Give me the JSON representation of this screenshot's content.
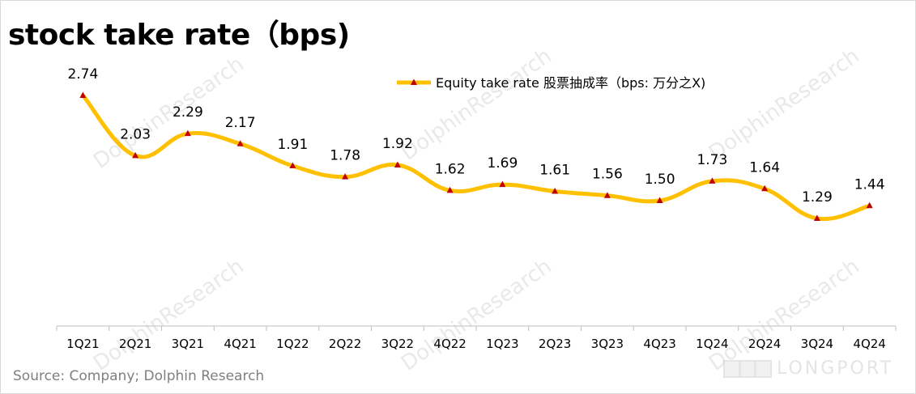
{
  "title": "stock take rate（bps)",
  "source": "Source: Company; Dolphin Research",
  "watermark": "DolphinResearch",
  "brand": "LONGPORT",
  "colors": {
    "line": "#FFC000",
    "marker": "#C00000",
    "axis": "#bfbfbf",
    "text": "#000000"
  },
  "chart_data": {
    "type": "line",
    "categories": [
      "1Q21",
      "2Q21",
      "3Q21",
      "4Q21",
      "1Q22",
      "2Q22",
      "3Q22",
      "4Q22",
      "1Q23",
      "2Q23",
      "3Q23",
      "4Q23",
      "1Q24",
      "2Q24",
      "3Q24",
      "4Q24"
    ],
    "series": [
      {
        "name": "Equity take rate 股票抽成率（bps: 万分之X)",
        "values": [
          2.74,
          2.03,
          2.29,
          2.17,
          1.91,
          1.78,
          1.92,
          1.62,
          1.69,
          1.61,
          1.56,
          1.5,
          1.73,
          1.64,
          1.29,
          1.44
        ],
        "labels": [
          "2.74",
          "2.03",
          "2.29",
          "2.17",
          "1.91",
          "1.78",
          "1.92",
          "1.62",
          "1.69",
          "1.61",
          "1.56",
          "1.50",
          "1.73",
          "1.64",
          "1.29",
          "1.44"
        ]
      }
    ],
    "title": "stock take rate（bps)",
    "xlabel": "",
    "ylabel": "",
    "ylim": [
      0,
      3.0
    ],
    "legend": "top-center",
    "grid": false
  }
}
